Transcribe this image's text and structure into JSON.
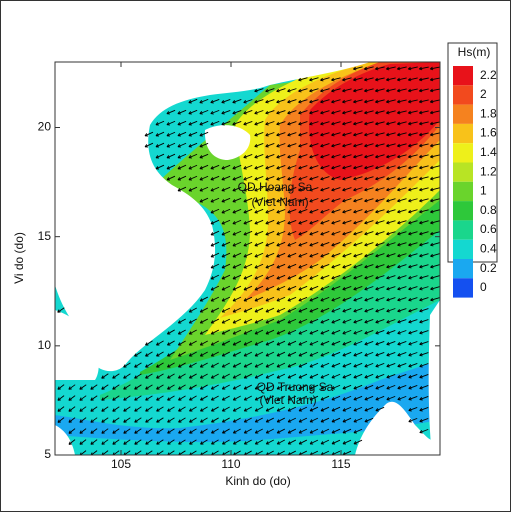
{
  "chart_data": {
    "type": "contour",
    "xlabel": "Kinh do (do)",
    "ylabel": "Vi do (do)",
    "xlim": [
      102,
      119.5
    ],
    "xticks": [
      105,
      110,
      115
    ],
    "ylim": [
      5,
      23
    ],
    "yticks": [
      5,
      10,
      15,
      20
    ],
    "colorbar": {
      "title": "Hs(m)",
      "levels": [
        2.2,
        2,
        1.8,
        1.6,
        1.4,
        1.2,
        1,
        0.8,
        0.6,
        0.4,
        0.2,
        0
      ],
      "colors": [
        "#e8121a",
        "#f24a1e",
        "#f5821f",
        "#f8c21a",
        "#eef01a",
        "#b8e424",
        "#6ad42c",
        "#2ec83a",
        "#1ad68c",
        "#14d8d0",
        "#1aa8f0",
        "#1450f0"
      ]
    },
    "annotations": [
      "QD Hoang Sa",
      "(Viet Nam)",
      "QD Truong Sa",
      "(Viet Nam)"
    ]
  }
}
